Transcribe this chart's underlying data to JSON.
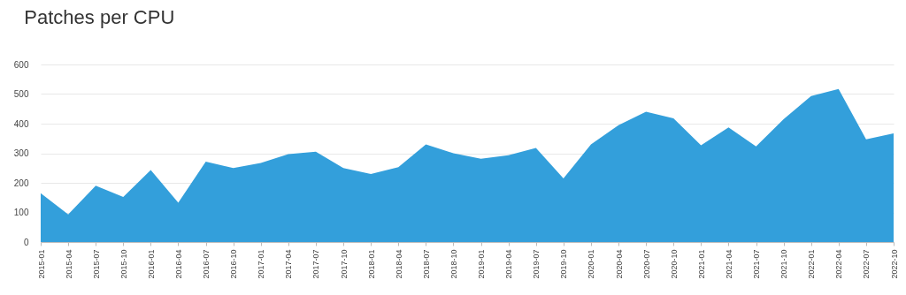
{
  "chart_data": {
    "type": "area",
    "title": "Patches per CPU",
    "categories": [
      "2015-01",
      "2015-04",
      "2015-07",
      "2015-10",
      "2016-01",
      "2016-04",
      "2016-07",
      "2016-10",
      "2017-01",
      "2017-04",
      "2017-07",
      "2017-10",
      "2018-01",
      "2018-04",
      "2018-07",
      "2018-10",
      "2019-01",
      "2019-04",
      "2019-07",
      "2019-10",
      "2020-01",
      "2020-04",
      "2020-07",
      "2020-10",
      "2021-01",
      "2021-04",
      "2021-07",
      "2021-10",
      "2022-01",
      "2022-04",
      "2022-07",
      "2022-10"
    ],
    "values": [
      165,
      93,
      190,
      152,
      243,
      133,
      272,
      250,
      267,
      297,
      305,
      250,
      230,
      253,
      330,
      300,
      281,
      293,
      318,
      215,
      330,
      395,
      440,
      418,
      327,
      387,
      323,
      415,
      493,
      517,
      347,
      367
    ],
    "color": "#339fdb",
    "ylim": [
      0,
      600
    ],
    "yticks": [
      0,
      100,
      200,
      300,
      400,
      500,
      600
    ],
    "grid": "y"
  }
}
